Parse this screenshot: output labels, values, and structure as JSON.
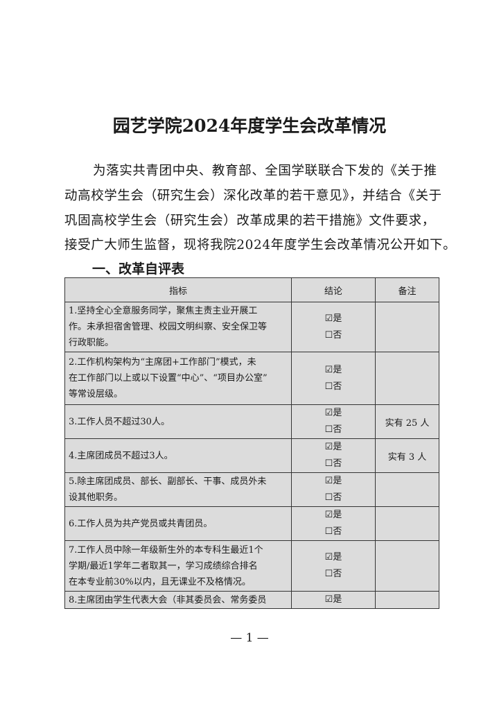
{
  "header": {
    "title": "园艺学院2024年度学生会改革情况"
  },
  "intro": {
    "lines": [
      "为落实共青团中央、教育部、全国学联联合下发的《关于推",
      "动高校学生会（研究生会）深化改革的若干意见》，并结合《关于",
      "巩固高校学生会（研究生会）改革成果的若干措施》文件要求，",
      "接受广大师生监督，现将我院2024年度学生会改革情况公开如下。"
    ]
  },
  "section": {
    "title": "一、改革自评表"
  },
  "table": {
    "headers": [
      "指标",
      "结论",
      "备注"
    ],
    "rows": [
      {
        "indicator": [
          "1.坚持全心全意服务同学，聚焦主责主业开展工",
          "作。未承担宿舍管理、校园文明纠察、安全保卫等",
          "行政职能。"
        ],
        "conclusion": [
          "☑是",
          "☐否"
        ]
      },
      {
        "indicator": [
          "2.工作机构架构为“主席团+工作部门”模式，未",
          "在工作部门以上或以下设置“中心”、“项目办公室”",
          "等常设层级。"
        ],
        "conclusion": [
          "☑是",
          "☐否"
        ]
      },
      {
        "indicator": [
          "3.工作人员不超过30人。"
        ],
        "conclusion": [
          "☑是",
          "☐否"
        ],
        "remark": "实有 25 人"
      },
      {
        "indicator": [
          "4.主席团成员不超过3人。"
        ],
        "conclusion": [
          "☑是",
          "☐否"
        ],
        "remark": "实有 3 人"
      },
      {
        "indicator": [
          "5.除主席团成员、部长、副部长、干事、成员外未",
          "设其他职务。"
        ],
        "conclusion": [
          "☑是",
          "☐否"
        ]
      },
      {
        "indicator": [
          "6.工作人员为共产党员或共青团员。"
        ],
        "conclusion": [
          "☑是",
          "☐否"
        ]
      },
      {
        "indicator": [
          "7.工作人员中除一年级新生外的本专科生最近1个",
          "学期/最近1学年二者取其一，学习成绩综合排名",
          "在本专业前30%以内，且无课业不及格情况。"
        ],
        "conclusion": [
          "☑是",
          "☐否"
        ]
      },
      {
        "indicator": [
          "8.主席团由学生代表大会（非其委员会、常务委员"
        ],
        "conclusion": [
          "☑是"
        ]
      }
    ]
  },
  "footer": {
    "page_number": "— 1 —"
  }
}
